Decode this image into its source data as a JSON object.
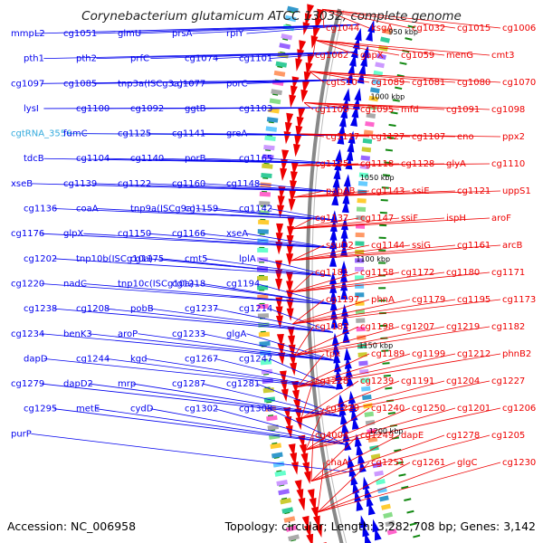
{
  "title": "Corynebacterium glutamicum ATCC 13032, complete genome",
  "accession_text": "Accession: NC_006958",
  "topology_text": "Topology: circular; Length: 3,282,708 bp; Genes: 3,142",
  "colors": {
    "forward": "#0000ee",
    "reverse": "#ee0000",
    "backbone": "#888888",
    "trna_label": "#33aadd",
    "tick": "#118811"
  },
  "scale_labels": [
    "950 kbp",
    "1000 kbp",
    "1050 kbp",
    "1100 kbp",
    "1150 kbp",
    "1200 kbp"
  ],
  "forward_labels": [
    "mmpL2",
    "cg1051",
    "glmU",
    "prsA",
    "rplY",
    "pth1",
    "pth2",
    "prfC",
    "cg1074",
    "cg1101",
    "cg1097",
    "cg1085",
    "tnp3a(ISCg3a)",
    "cg1077",
    "porC",
    "lysI",
    "cg1100",
    "cg1092",
    "ggtB",
    "cg1103",
    "cgtRNA_3556",
    "fumC",
    "cg1125",
    "cg1141",
    "greA",
    "tdcB",
    "cg1104",
    "cg1140",
    "porB",
    "cg1165",
    "xseB",
    "cg1139",
    "cg1122",
    "cg1160",
    "cg1148",
    "cg1136",
    "coaA",
    "tnp9a(ISCg9a)",
    "cg1159",
    "cg1142",
    "cg1176",
    "glpX",
    "cg1150",
    "cg1166",
    "xseA",
    "cg1202",
    "tnp10b(ISCg10a)",
    "cg1175",
    "cmt5",
    "lplA",
    "cg1220",
    "nadC",
    "tnp10c(ISCg10a)",
    "cg1218",
    "cg1194",
    "cg1238",
    "cg1208",
    "pobB",
    "cg1237",
    "cg1214",
    "cg1234",
    "benK3",
    "aroP",
    "cg1233",
    "glgA",
    "dapD",
    "cg1244",
    "kgd",
    "cg1267",
    "cg1247",
    "cg1279",
    "dapD2",
    "mrp",
    "cg1287",
    "cg1281",
    "cg1295",
    "metE",
    "cydD",
    "cg1302",
    "cg1308",
    "purP"
  ],
  "reverse_labels": [
    "cg1006",
    "cg1015",
    "cg1032",
    "ksgA",
    "cg1044",
    "cmt3",
    "menG",
    "cg1059",
    "gapX",
    "cg1062",
    "cg1070",
    "cg1080",
    "cg1081",
    "cg1089",
    "cgtS10",
    "cg1098",
    "cg1091",
    "mfd",
    "cg1095",
    "cg1106",
    "ppx2",
    "eno",
    "cg1107",
    "cg1127",
    "cg1117",
    "cg1110",
    "glyA",
    "cg1128",
    "cg1118",
    "cg1135",
    "uppS1",
    "cg1121",
    "ssiE",
    "cg1143",
    "pabAB",
    "aroF",
    "ispH",
    "ssiF",
    "cg1147",
    "cg1137",
    "arcB",
    "cg1161",
    "ssiG",
    "cg1144",
    "ssuD2",
    "cg1171",
    "cg1180",
    "cg1172",
    "cg1158",
    "cg1181",
    "cg1173",
    "cg1195",
    "cg1179",
    "phnA",
    "cg1197",
    "cg1182",
    "cg1219",
    "cg1207",
    "cg1198",
    "cg1183",
    "phnB2",
    "cg1212",
    "cg1199",
    "cg1189",
    "tpx",
    "cg1227",
    "cg1204",
    "cg1191",
    "cg1239",
    "cg1228",
    "cg1206",
    "cg1201",
    "cg1250",
    "cg1240",
    "cg1229",
    "cg1205",
    "cg1278",
    "dapE",
    "cg1249",
    "cg4004",
    "cg1230",
    "glgC",
    "cg1261",
    "cg1251",
    "chaA"
  ]
}
